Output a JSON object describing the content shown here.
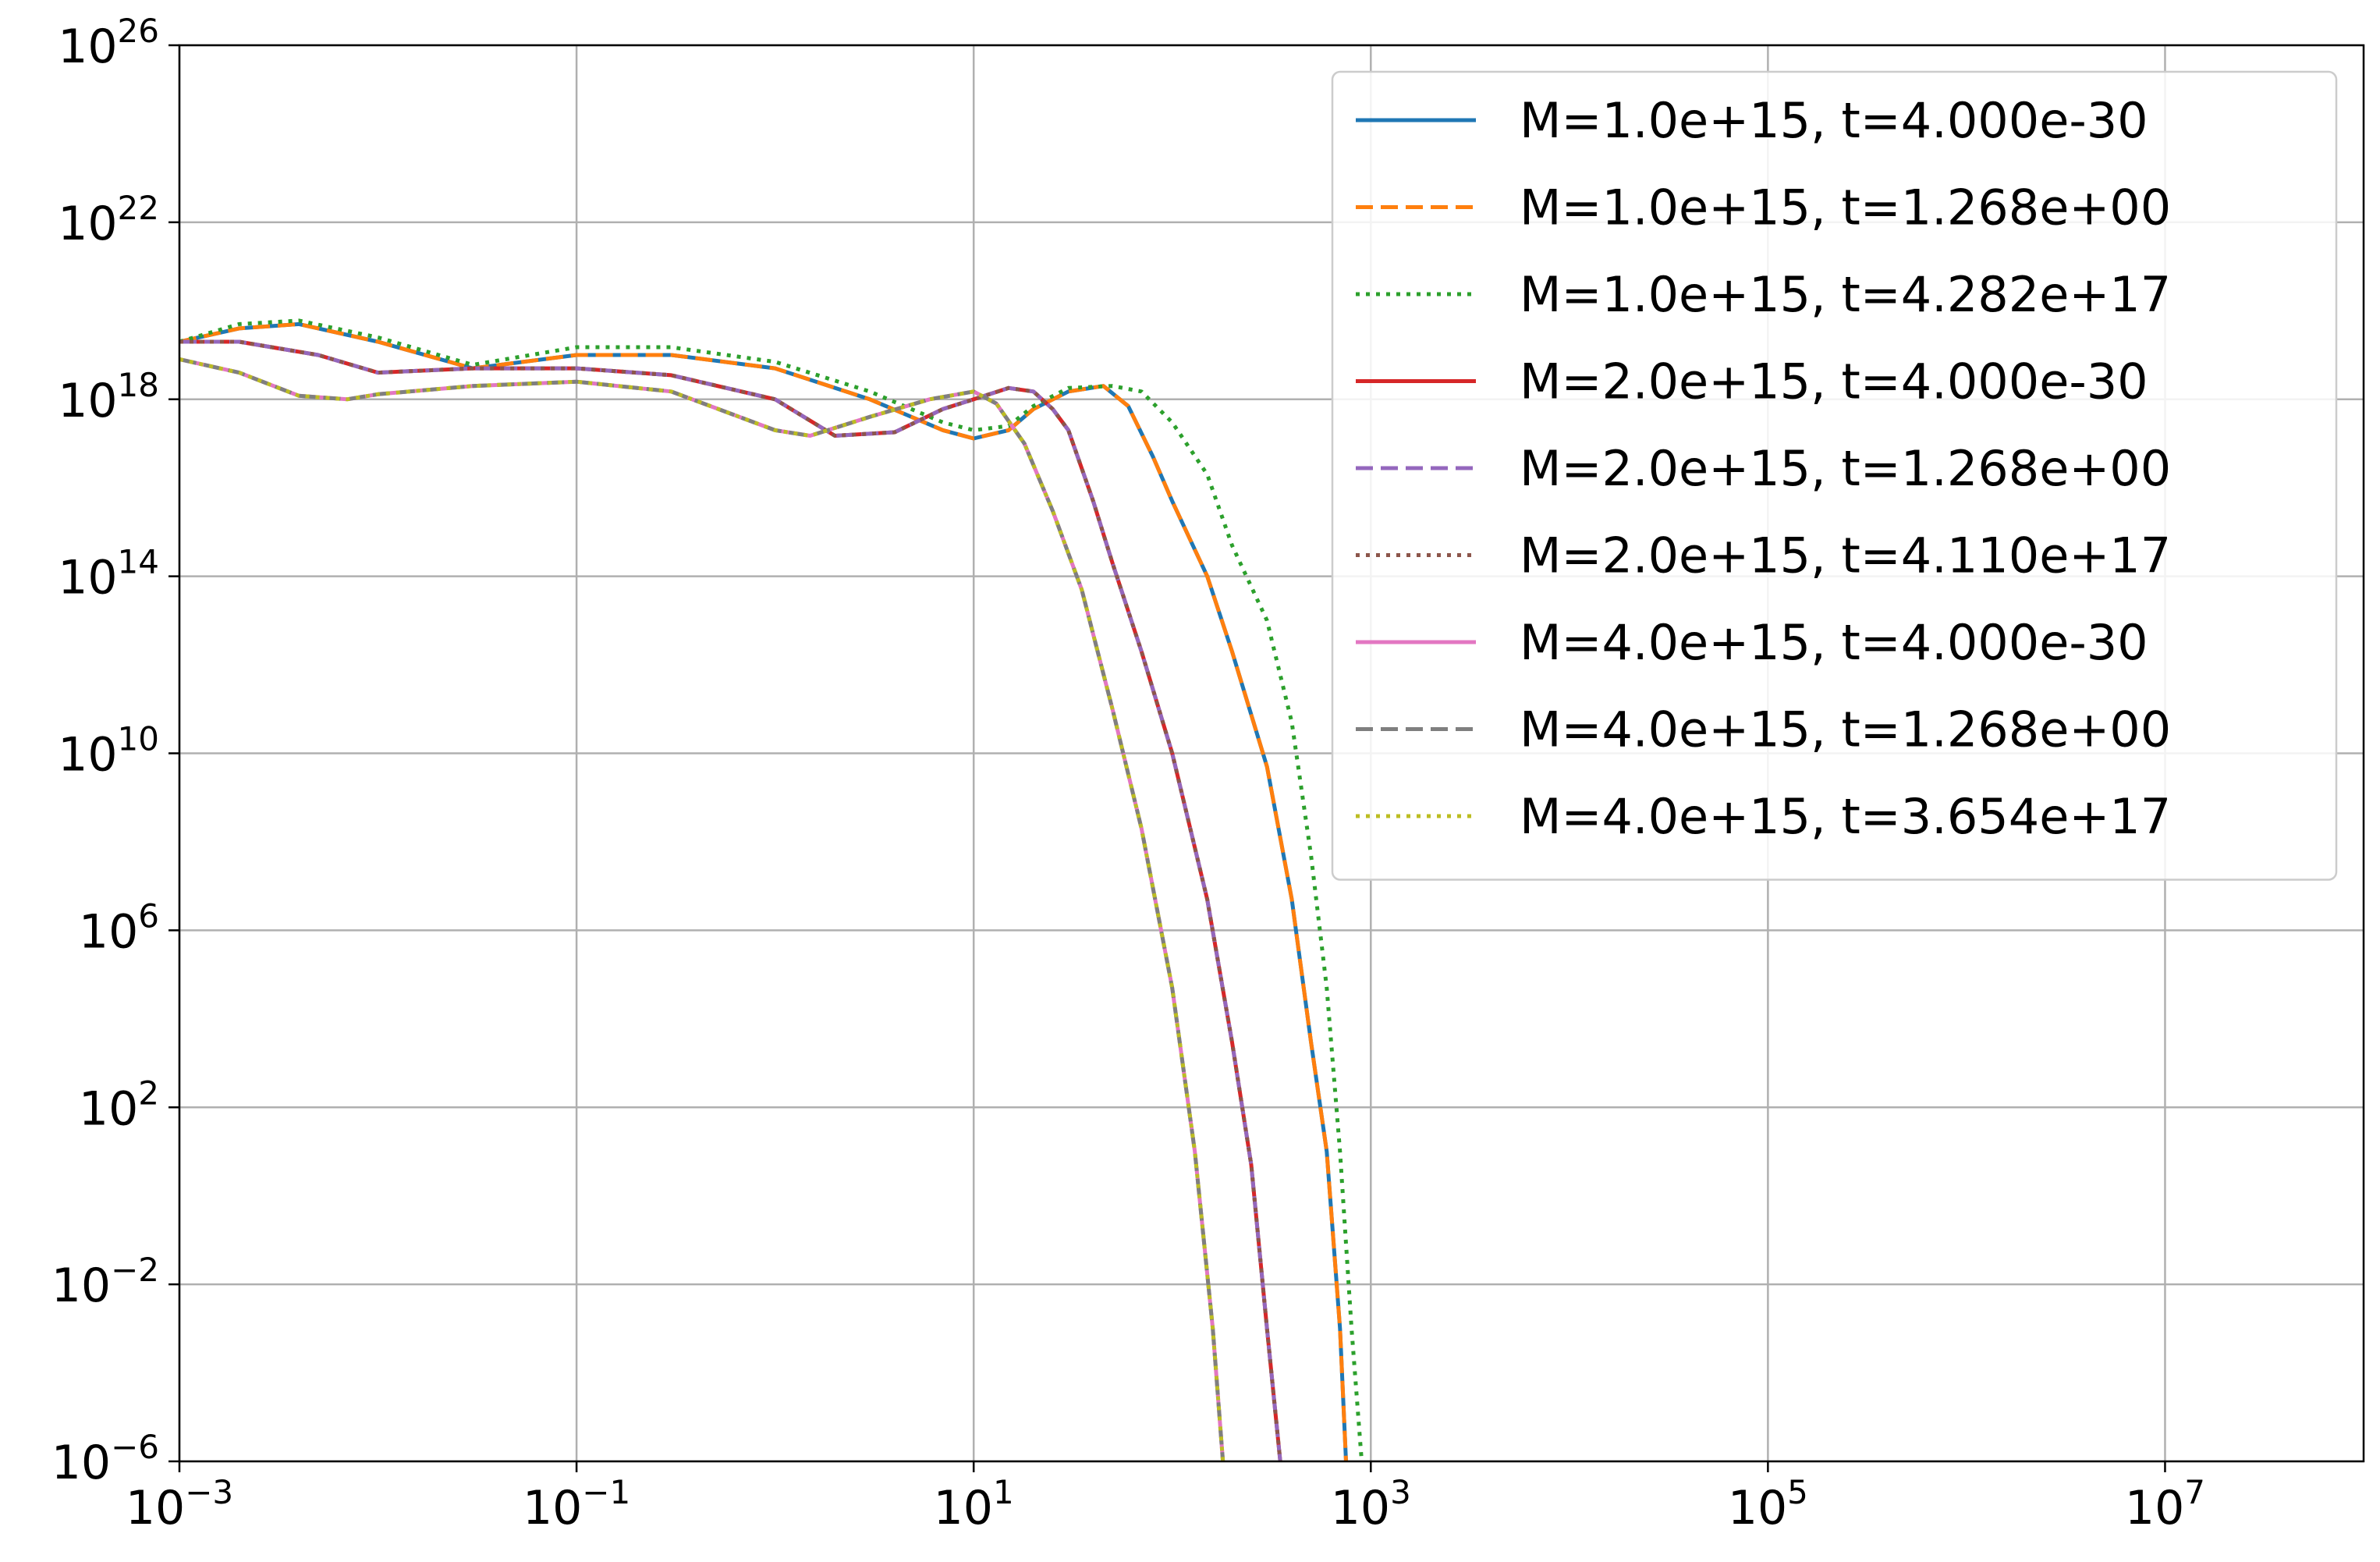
{
  "chart_data": {
    "type": "line",
    "title": "",
    "xlabel": "",
    "ylabel": "",
    "xscale": "log",
    "yscale": "log",
    "xlim": [
      0.001,
      100000000
    ],
    "ylim": [
      1e-06,
      1e+26
    ],
    "grid": true,
    "legend_position": "top-right",
    "x_ticks": [
      {
        "base": "10",
        "exp": "−3",
        "value": 0.001
      },
      {
        "base": "10",
        "exp": "−1",
        "value": 0.1
      },
      {
        "base": "10",
        "exp": "1",
        "value": 10
      },
      {
        "base": "10",
        "exp": "3",
        "value": 1000
      },
      {
        "base": "10",
        "exp": "5",
        "value": 100000
      },
      {
        "base": "10",
        "exp": "7",
        "value": 10000000
      }
    ],
    "y_ticks": [
      {
        "base": "10",
        "exp": "−6",
        "value": 1e-06
      },
      {
        "base": "10",
        "exp": "−2",
        "value": 0.01
      },
      {
        "base": "10",
        "exp": "2",
        "value": 100
      },
      {
        "base": "10",
        "exp": "6",
        "value": 1000000.0
      },
      {
        "base": "10",
        "exp": "10",
        "value": 10000000000.0
      },
      {
        "base": "10",
        "exp": "14",
        "value": 100000000000000.0
      },
      {
        "base": "10",
        "exp": "18",
        "value": 1e+18
      },
      {
        "base": "10",
        "exp": "22",
        "value": 1e+22
      },
      {
        "base": "10",
        "exp": "26",
        "value": 1e+26
      }
    ],
    "series": [
      {
        "name": "M=1.0e+15, t=4.000e-30",
        "color": "#1f77b4",
        "style": "solid",
        "x": [
          0.001,
          0.002,
          0.004,
          0.01,
          0.03,
          0.1,
          0.3,
          1,
          3,
          7,
          10,
          15,
          20,
          30,
          45,
          60,
          80,
          100,
          150,
          200,
          300,
          400,
          500,
          600,
          700,
          750
        ],
        "y": [
          2e+19,
          4e+19,
          5e+19,
          2e+19,
          5e+18,
          1e+19,
          1e+19,
          5e+18,
          1e+18,
          2e+17,
          1.3e+17,
          2e+17,
          6e+17,
          1.5e+18,
          2e+18,
          7e+17,
          5e+16,
          5000000000000000.0,
          100000000000000.0,
          2000000000000.0,
          5000000000.0,
          5000000.0,
          3000.0,
          10,
          0.001,
          1e-06
        ]
      },
      {
        "name": "M=1.0e+15, t=1.268e+00",
        "color": "#ff7f0e",
        "style": "dashed",
        "x": [
          0.001,
          0.002,
          0.004,
          0.01,
          0.03,
          0.1,
          0.3,
          1,
          3,
          7,
          10,
          15,
          20,
          30,
          45,
          60,
          80,
          100,
          150,
          200,
          300,
          400,
          500,
          600,
          700,
          750
        ],
        "y": [
          2e+19,
          4e+19,
          5e+19,
          2e+19,
          5e+18,
          1e+19,
          1e+19,
          5e+18,
          1e+18,
          2e+17,
          1.3e+17,
          2e+17,
          6e+17,
          1.5e+18,
          2e+18,
          7e+17,
          5e+16,
          5000000000000000.0,
          100000000000000.0,
          2000000000000.0,
          5000000000.0,
          5000000.0,
          3000.0,
          10,
          0.001,
          1e-06
        ]
      },
      {
        "name": "M=1.0e+15, t=4.282e+17",
        "color": "#2ca02c",
        "style": "dotted",
        "x": [
          0.001,
          0.002,
          0.004,
          0.01,
          0.03,
          0.1,
          0.3,
          1,
          3,
          7,
          10,
          15,
          20,
          30,
          50,
          70,
          100,
          150,
          200,
          300,
          400,
          500,
          600,
          700,
          800,
          900
        ],
        "y": [
          2e+19,
          5e+19,
          6e+19,
          2.5e+19,
          6e+18,
          1.5e+19,
          1.5e+19,
          7e+18,
          1.5e+18,
          3e+17,
          2e+17,
          2.5e+17,
          7e+17,
          1.8e+18,
          2e+18,
          1.5e+18,
          3e+17,
          2e+16,
          500000000000000.0,
          10000000000000.0,
          50000000000.0,
          50000000.0,
          50000.0,
          10,
          0.001,
          1e-06
        ]
      },
      {
        "name": "M=2.0e+15, t=4.000e-30",
        "color": "#d62728",
        "style": "solid",
        "x": [
          0.001,
          0.002,
          0.005,
          0.01,
          0.03,
          0.1,
          0.3,
          1,
          2,
          4,
          7,
          10,
          15,
          20,
          25,
          30,
          40,
          50,
          70,
          100,
          150,
          200,
          250,
          300,
          350
        ],
        "y": [
          2e+19,
          2e+19,
          1e+19,
          4e+18,
          5e+18,
          5e+18,
          3.5e+18,
          1e+18,
          1.5e+17,
          1.8e+17,
          6e+17,
          1e+18,
          1.8e+18,
          1.5e+18,
          6e+17,
          2e+17,
          5000000000000000.0,
          200000000000000.0,
          2000000000000.0,
          10000000000.0,
          5000000.0,
          3000.0,
          5,
          0.001,
          1e-06
        ]
      },
      {
        "name": "M=2.0e+15, t=1.268e+00",
        "color": "#9467bd",
        "style": "dashed",
        "x": [
          0.001,
          0.002,
          0.005,
          0.01,
          0.03,
          0.1,
          0.3,
          1,
          2,
          4,
          7,
          10,
          15,
          20,
          25,
          30,
          40,
          50,
          70,
          100,
          150,
          200,
          250,
          300,
          350
        ],
        "y": [
          2e+19,
          2e+19,
          1e+19,
          4e+18,
          5e+18,
          5e+18,
          3.5e+18,
          1e+18,
          1.5e+17,
          1.8e+17,
          6e+17,
          1e+18,
          1.8e+18,
          1.5e+18,
          6e+17,
          2e+17,
          5000000000000000.0,
          200000000000000.0,
          2000000000000.0,
          10000000000.0,
          5000000.0,
          3000.0,
          5,
          0.001,
          1e-06
        ]
      },
      {
        "name": "M=2.0e+15, t=4.110e+17",
        "color": "#8c564b",
        "style": "dotted",
        "x": [
          0.001,
          0.002,
          0.005,
          0.01,
          0.03,
          0.1,
          0.3,
          1,
          2,
          4,
          7,
          10,
          15,
          20,
          25,
          30,
          40,
          50,
          70,
          100,
          150,
          200,
          250,
          300,
          350
        ],
        "y": [
          2e+19,
          2e+19,
          1e+19,
          4e+18,
          5e+18,
          5e+18,
          3.5e+18,
          1e+18,
          1.5e+17,
          1.8e+17,
          6e+17,
          1e+18,
          1.8e+18,
          1.5e+18,
          6e+17,
          2e+17,
          5000000000000000.0,
          200000000000000.0,
          2000000000000.0,
          10000000000.0,
          5000000.0,
          3000.0,
          5,
          0.001,
          1e-06
        ]
      },
      {
        "name": "M=4.0e+15, t=4.000e-30",
        "color": "#e377c2",
        "style": "solid",
        "x": [
          0.001,
          0.002,
          0.004,
          0.007,
          0.01,
          0.03,
          0.1,
          0.3,
          1,
          1.5,
          3,
          6,
          10,
          13,
          18,
          25,
          35,
          50,
          70,
          100,
          130,
          160,
          180
        ],
        "y": [
          8e+18,
          4e+18,
          1.2e+18,
          1e+18,
          1.3e+18,
          2e+18,
          2.5e+18,
          1.5e+18,
          2e+17,
          1.5e+17,
          4e+17,
          1e+18,
          1.5e+18,
          8e+17,
          1e+17,
          3000000000000000.0,
          50000000000000.0,
          100000000000.0,
          200000000.0,
          50000.0,
          10,
          0.001,
          1e-06
        ]
      },
      {
        "name": "M=4.0e+15, t=1.268e+00",
        "color": "#7f7f7f",
        "style": "dashed",
        "x": [
          0.001,
          0.002,
          0.004,
          0.007,
          0.01,
          0.03,
          0.1,
          0.3,
          1,
          1.5,
          3,
          6,
          10,
          13,
          18,
          25,
          35,
          50,
          70,
          100,
          130,
          160,
          180
        ],
        "y": [
          8e+18,
          4e+18,
          1.2e+18,
          1e+18,
          1.3e+18,
          2e+18,
          2.5e+18,
          1.5e+18,
          2e+17,
          1.5e+17,
          4e+17,
          1e+18,
          1.5e+18,
          8e+17,
          1e+17,
          3000000000000000.0,
          50000000000000.0,
          100000000000.0,
          200000000.0,
          50000.0,
          10,
          0.001,
          1e-06
        ]
      },
      {
        "name": "M=4.0e+15, t=3.654e+17",
        "color": "#bcbd22",
        "style": "dotted",
        "x": [
          0.001,
          0.002,
          0.004,
          0.007,
          0.01,
          0.03,
          0.1,
          0.3,
          1,
          1.5,
          3,
          6,
          10,
          13,
          18,
          25,
          35,
          50,
          70,
          100,
          130,
          160,
          180
        ],
        "y": [
          8e+18,
          4e+18,
          1.2e+18,
          1e+18,
          1.3e+18,
          2e+18,
          2.5e+18,
          1.5e+18,
          2e+17,
          1.5e+17,
          4e+17,
          1e+18,
          1.5e+18,
          8e+17,
          1e+17,
          3000000000000000.0,
          50000000000000.0,
          100000000000.0,
          200000000.0,
          50000.0,
          10,
          0.001,
          1e-06
        ]
      }
    ]
  }
}
